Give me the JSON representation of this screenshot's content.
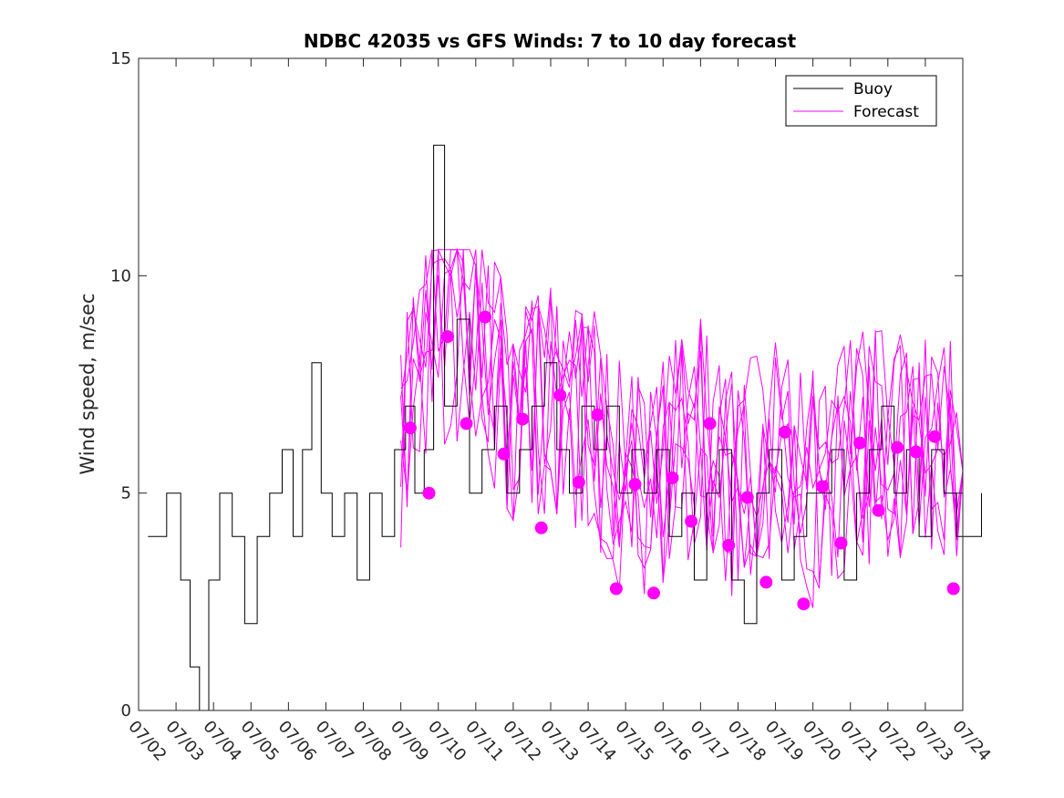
{
  "chart_data": {
    "type": "line",
    "title": "NDBC 42035 vs GFS Winds: 7 to 10 day forecast",
    "xlabel": "",
    "ylabel": "Wind speed, m/sec",
    "ylim": [
      0,
      15
    ],
    "yticks": [
      0,
      5,
      10,
      15
    ],
    "xlim": [
      "07/02",
      "07/24"
    ],
    "xtick_labels": [
      "07/02",
      "07/03",
      "07/04",
      "07/05",
      "07/06",
      "07/07",
      "07/08",
      "07/09",
      "07/10",
      "07/11",
      "07/12",
      "07/13",
      "07/14",
      "07/15",
      "07/16",
      "07/17",
      "07/18",
      "07/19",
      "07/20",
      "07/21",
      "07/22",
      "07/23",
      "07/24"
    ],
    "grid": false,
    "legend_position": "top-right",
    "colors": {
      "buoy": "#000000",
      "forecast": "#ff00ff"
    },
    "series": [
      {
        "name": "Buoy",
        "style": "step-line",
        "color": "#000000",
        "x": [
          "07/02",
          "07/02",
          "07/03",
          "07/03",
          "07/03",
          "07/03",
          "07/04",
          "07/04",
          "07/04",
          "07/05",
          "07/05",
          "07/05",
          "07/06",
          "07/06",
          "07/06",
          "07/06",
          "07/07",
          "07/07",
          "07/07",
          "07/08",
          "07/08",
          "07/08",
          "07/09",
          "07/09",
          "07/09",
          "07/09",
          "07/10",
          "07/10",
          "07/10",
          "07/11",
          "07/11",
          "07/11",
          "07/12",
          "07/12",
          "07/12",
          "07/13",
          "07/13",
          "07/13",
          "07/14",
          "07/14",
          "07/14",
          "07/15",
          "07/15",
          "07/15",
          "07/16",
          "07/16",
          "07/16",
          "07/17",
          "07/17",
          "07/17",
          "07/18",
          "07/18",
          "07/18",
          "07/19",
          "07/19",
          "07/19",
          "07/20",
          "07/20",
          "07/20",
          "07/21",
          "07/21",
          "07/21",
          "07/22",
          "07/22",
          "07/22",
          "07/23",
          "07/23",
          "07/23",
          "07/24"
        ],
        "y": [
          4,
          5,
          3,
          1,
          0,
          3,
          5,
          4,
          2,
          4,
          5,
          6,
          4,
          6,
          8,
          5,
          4,
          5,
          3,
          5,
          4,
          6,
          7,
          5,
          6,
          13,
          7,
          9,
          5,
          6,
          7,
          5,
          6,
          7,
          8,
          6,
          5,
          7,
          6,
          7,
          5,
          6,
          5,
          6,
          4,
          5,
          3,
          5,
          6,
          3,
          2,
          5,
          6,
          3,
          4,
          5,
          5,
          6,
          3,
          5,
          6,
          7,
          5,
          6,
          4,
          6,
          5,
          4,
          5
        ]
      },
      {
        "name": "Forecast",
        "style": "lines",
        "color": "#ff00ff",
        "x": [
          "07/09",
          "07/10",
          "07/11",
          "07/12",
          "07/13",
          "07/14",
          "07/15",
          "07/16",
          "07/17",
          "07/18",
          "07/19",
          "07/20",
          "07/21",
          "07/22",
          "07/23",
          "07/24"
        ],
        "y": [
          6.5,
          8.6,
          9,
          6.7,
          7.2,
          6.8,
          5.2,
          5.4,
          6.6,
          4.9,
          6.4,
          5.1,
          6.1,
          6.0,
          6.3,
          5.5
        ]
      }
    ],
    "markers": {
      "name": "forecast-points",
      "color": "#ff00ff",
      "x": [
        "07/09",
        "07/09",
        "07/10",
        "07/10",
        "07/11",
        "07/11",
        "07/12",
        "07/12",
        "07/13",
        "07/13",
        "07/14",
        "07/14",
        "07/15",
        "07/15",
        "07/16",
        "07/16",
        "07/17",
        "07/17",
        "07/18",
        "07/18",
        "07/19",
        "07/19",
        "07/20",
        "07/20",
        "07/21",
        "07/21",
        "07/22",
        "07/22",
        "07/23",
        "07/23"
      ],
      "y": [
        6.5,
        5.0,
        8.6,
        6.6,
        9.05,
        5.9,
        6.7,
        4.2,
        7.25,
        5.25,
        6.8,
        2.8,
        5.2,
        2.7,
        5.35,
        4.35,
        6.6,
        3.8,
        4.9,
        2.95,
        6.4,
        2.45,
        5.15,
        3.85,
        6.15,
        4.6,
        6.05,
        5.95,
        6.3,
        2.8
      ]
    }
  }
}
